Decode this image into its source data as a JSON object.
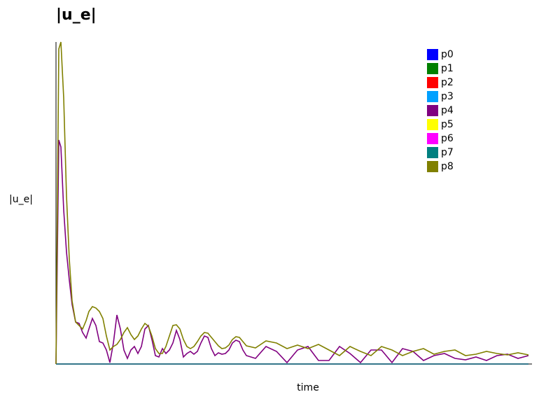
{
  "chart_data": {
    "type": "line",
    "title": "|u_e|",
    "ylabel": "|u_e|",
    "xlabel": "time",
    "xlim": [
      0,
      680
    ],
    "ylim": [
      0,
      460
    ],
    "legend": "top-right",
    "x": [
      0,
      4,
      7,
      11,
      15,
      19,
      23,
      28,
      33,
      38,
      43,
      47,
      52,
      57,
      62,
      67,
      72,
      77,
      82,
      87,
      92,
      97,
      102,
      107,
      112,
      117,
      122,
      127,
      132,
      137,
      142,
      147,
      152,
      157,
      162,
      167,
      172,
      177,
      182,
      187,
      192,
      197,
      202,
      207,
      212,
      217,
      222,
      227,
      232,
      237,
      242,
      247,
      252,
      257,
      262,
      267,
      272,
      285,
      300,
      315,
      330,
      345,
      360,
      375,
      390,
      405,
      420,
      435,
      450,
      465,
      480,
      495,
      510,
      525,
      540,
      555,
      570,
      585,
      600,
      615,
      630,
      645,
      660,
      675
    ],
    "series": [
      {
        "name": "p0",
        "color": "#0000ff",
        "values": [
          0,
          0,
          0,
          0,
          0,
          0,
          0,
          0,
          0,
          0,
          0,
          0,
          0,
          0,
          0,
          0,
          0,
          0,
          0,
          0,
          0,
          0,
          0,
          0,
          0,
          0,
          0,
          0,
          0,
          0,
          0,
          0,
          0,
          0,
          0,
          0,
          0,
          0,
          0,
          0,
          0,
          0,
          0,
          0,
          0,
          0,
          0,
          0,
          0,
          0,
          0,
          0,
          0,
          0,
          0,
          0,
          0,
          0,
          0,
          0,
          0,
          0,
          0,
          0,
          0,
          0,
          0,
          0,
          0,
          0,
          0,
          0,
          0,
          0,
          0,
          0,
          0,
          0,
          0,
          0,
          0,
          0,
          0,
          0
        ]
      },
      {
        "name": "p1",
        "color": "#008000",
        "values": [
          0,
          0,
          0,
          0,
          0,
          0,
          0,
          0,
          0,
          0,
          0,
          0,
          0,
          0,
          0,
          0,
          0,
          0,
          0,
          0,
          0,
          0,
          0,
          0,
          0,
          0,
          0,
          0,
          0,
          0,
          0,
          0,
          0,
          0,
          0,
          0,
          0,
          0,
          0,
          0,
          0,
          0,
          0,
          0,
          0,
          0,
          0,
          0,
          0,
          0,
          0,
          0,
          0,
          0,
          0,
          0,
          0,
          0,
          0,
          0,
          0,
          0,
          0,
          0,
          0,
          0,
          0,
          0,
          0,
          0,
          0,
          0,
          0,
          0,
          0,
          0,
          0,
          0,
          0,
          0,
          0,
          0,
          0,
          0
        ]
      },
      {
        "name": "p2",
        "color": "#ff0000",
        "values": [
          0,
          0,
          0,
          0,
          0,
          0,
          0,
          0,
          0,
          0,
          0,
          0,
          0,
          0,
          0,
          0,
          0,
          0,
          0,
          0,
          0,
          0,
          0,
          0,
          0,
          0,
          0,
          0,
          0,
          0,
          0,
          0,
          0,
          0,
          0,
          0,
          0,
          0,
          0,
          0,
          0,
          0,
          0,
          0,
          0,
          0,
          0,
          0,
          0,
          0,
          0,
          0,
          0,
          0,
          0,
          0,
          0,
          0,
          0,
          0,
          0,
          0,
          0,
          0,
          0,
          0,
          0,
          0,
          0,
          0,
          0,
          0,
          0,
          0,
          0,
          0,
          0,
          0,
          0,
          0,
          0,
          0,
          0,
          0
        ]
      },
      {
        "name": "p3",
        "color": "#00a0ff",
        "values": [
          0,
          0,
          0,
          0,
          0,
          0,
          0,
          0,
          0,
          0,
          0,
          0,
          0,
          0,
          0,
          0,
          0,
          0,
          0,
          0,
          0,
          0,
          0,
          0,
          0,
          0,
          0,
          0,
          0,
          0,
          0,
          0,
          0,
          0,
          0,
          0,
          0,
          0,
          0,
          0,
          0,
          0,
          0,
          0,
          0,
          0,
          0,
          0,
          0,
          0,
          0,
          0,
          0,
          0,
          0,
          0,
          0,
          0,
          0,
          0,
          0,
          0,
          0,
          0,
          0,
          0,
          0,
          0,
          0,
          0,
          0,
          0,
          0,
          0,
          0,
          0,
          0,
          0,
          0,
          0,
          0,
          0,
          0,
          0
        ]
      },
      {
        "name": "p4",
        "color": "#800080",
        "values": [
          0,
          320,
          310,
          220,
          160,
          120,
          85,
          60,
          58,
          45,
          37,
          50,
          65,
          55,
          32,
          30,
          20,
          2,
          30,
          70,
          50,
          20,
          8,
          20,
          25,
          15,
          25,
          50,
          55,
          35,
          12,
          10,
          22,
          15,
          20,
          30,
          48,
          35,
          10,
          15,
          18,
          14,
          18,
          30,
          40,
          38,
          22,
          12,
          16,
          14,
          15,
          20,
          30,
          34,
          32,
          20,
          12,
          8,
          25,
          18,
          2,
          20,
          25,
          5,
          5,
          25,
          15,
          2,
          20,
          20,
          2,
          22,
          18,
          5,
          12,
          15,
          8,
          6,
          10,
          5,
          12,
          14,
          8,
          12
        ]
      },
      {
        "name": "p5",
        "color": "#ffff00",
        "values": [
          0,
          0,
          0,
          0,
          0,
          0,
          0,
          0,
          0,
          0,
          0,
          0,
          0,
          0,
          0,
          0,
          0,
          0,
          0,
          0,
          0,
          0,
          0,
          0,
          0,
          0,
          0,
          0,
          0,
          0,
          0,
          0,
          0,
          0,
          0,
          0,
          0,
          0,
          0,
          0,
          0,
          0,
          0,
          0,
          0,
          0,
          0,
          0,
          0,
          0,
          0,
          0,
          0,
          0,
          0,
          0,
          0,
          0,
          0,
          0,
          0,
          0,
          0,
          0,
          0,
          0,
          0,
          0,
          0,
          0,
          0,
          0,
          0,
          0,
          0,
          0,
          0,
          0,
          0,
          0,
          0,
          0,
          0,
          0
        ]
      },
      {
        "name": "p6",
        "color": "#ff00ff",
        "values": [
          0,
          0,
          0,
          0,
          0,
          0,
          0,
          0,
          0,
          0,
          0,
          0,
          0,
          0,
          0,
          0,
          0,
          0,
          0,
          0,
          0,
          0,
          0,
          0,
          0,
          0,
          0,
          0,
          0,
          0,
          0,
          0,
          0,
          0,
          0,
          0,
          0,
          0,
          0,
          0,
          0,
          0,
          0,
          0,
          0,
          0,
          0,
          0,
          0,
          0,
          0,
          0,
          0,
          0,
          0,
          0,
          0,
          0,
          0,
          0,
          0,
          0,
          0,
          0,
          0,
          0,
          0,
          0,
          0,
          0,
          0,
          0,
          0,
          0,
          0,
          0,
          0,
          0,
          0,
          0,
          0,
          0,
          0,
          0
        ]
      },
      {
        "name": "p7",
        "color": "#008080",
        "values": [
          0,
          0,
          0,
          0,
          0,
          0,
          0,
          0,
          0,
          0,
          0,
          0,
          0,
          0,
          0,
          0,
          0,
          0,
          0,
          0,
          0,
          0,
          0,
          0,
          0,
          0,
          0,
          0,
          0,
          0,
          0,
          0,
          0,
          0,
          0,
          0,
          0,
          0,
          0,
          0,
          0,
          0,
          0,
          0,
          0,
          0,
          0,
          0,
          0,
          0,
          0,
          0,
          0,
          0,
          0,
          0,
          0,
          0,
          0,
          0,
          0,
          0,
          0,
          0,
          0,
          0,
          0,
          0,
          0,
          0,
          0,
          0,
          0,
          0,
          0,
          0,
          0,
          0,
          0,
          0,
          0,
          0,
          0,
          0
        ]
      },
      {
        "name": "p8",
        "color": "#808000",
        "values": [
          0,
          450,
          460,
          380,
          240,
          150,
          90,
          60,
          55,
          50,
          62,
          75,
          82,
          80,
          75,
          65,
          40,
          20,
          25,
          28,
          35,
          45,
          52,
          42,
          35,
          40,
          50,
          58,
          54,
          40,
          22,
          15,
          15,
          25,
          40,
          55,
          56,
          50,
          35,
          25,
          22,
          25,
          32,
          40,
          45,
          44,
          38,
          32,
          26,
          22,
          23,
          27,
          35,
          39,
          38,
          32,
          26,
          23,
          33,
          30,
          22,
          27,
          22,
          28,
          20,
          12,
          25,
          18,
          12,
          25,
          20,
          12,
          18,
          22,
          14,
          18,
          20,
          12,
          14,
          18,
          15,
          13,
          16,
          13
        ]
      }
    ]
  }
}
